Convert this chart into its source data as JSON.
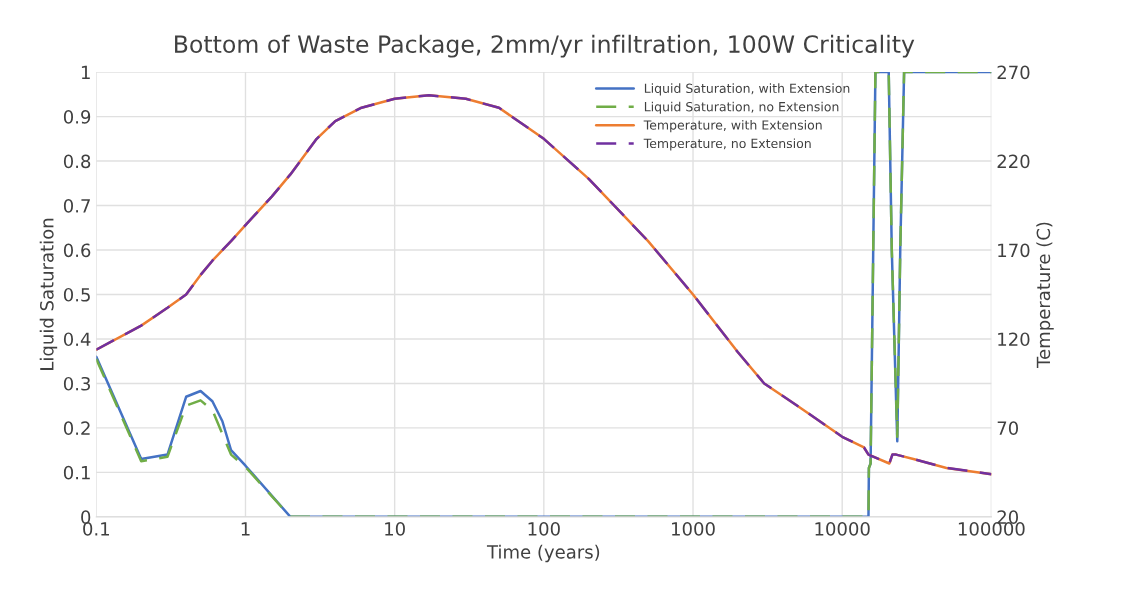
{
  "chart_data": {
    "type": "line",
    "title": "Bottom of Waste Package, 2mm/yr infiltration, 100W Criticality",
    "xlabel": "Time (years)",
    "ylabel": "Liquid Saturation",
    "y2label": "Temperature (C)",
    "log": "x",
    "xlim": [
      0.1,
      100000
    ],
    "xticks": [
      0.1,
      1,
      10,
      100,
      1000,
      10000,
      100000
    ],
    "ylim": [
      0,
      1
    ],
    "yticks": [
      0,
      0.1,
      0.2,
      0.3,
      0.4,
      0.5,
      0.6,
      0.7,
      0.8,
      0.9,
      1
    ],
    "y2lim": [
      20,
      270
    ],
    "y2ticks": [
      20,
      70,
      120,
      170,
      220,
      270
    ],
    "grid": true,
    "legend": "top right",
    "series": [
      {
        "name": "Liquid Saturation, with Extension",
        "color": "#4472c4",
        "line_style": "solid",
        "x": [
          0.1,
          0.2,
          0.3,
          0.4,
          0.5,
          0.6,
          0.7,
          0.8,
          1,
          2,
          15000,
          15100,
          15500,
          16700,
          20500,
          21500,
          23400,
          24500,
          26000,
          100000
        ],
        "values": [
          0.36,
          0.13,
          0.14,
          0.27,
          0.283,
          0.26,
          0.215,
          0.15,
          0.115,
          0,
          0,
          0.11,
          0.12,
          1,
          1,
          0.6,
          0.17,
          0.6,
          1,
          1
        ]
      },
      {
        "name": "Liquid Saturation, no Extension",
        "color": "#70ad47",
        "line_style": "dashed",
        "x": [
          0.1,
          0.2,
          0.3,
          0.4,
          0.5,
          0.6,
          0.8,
          1,
          2,
          15000,
          15100,
          15500,
          16700,
          20500,
          21500,
          23400,
          24500,
          26000,
          100000
        ],
        "values": [
          0.355,
          0.125,
          0.135,
          0.25,
          0.262,
          0.24,
          0.14,
          0.112,
          0,
          0,
          0.11,
          0.12,
          1,
          1,
          0.6,
          0.18,
          0.6,
          1,
          1
        ]
      },
      {
        "name": "Temperature, with Extension",
        "color": "#ed7d31",
        "line_style": "solid",
        "axis": "y2",
        "x": [
          0.1,
          0.2,
          0.3,
          0.4,
          0.5,
          0.6,
          0.8,
          1,
          1.5,
          2,
          3,
          4,
          6,
          10,
          17,
          30,
          50,
          100,
          200,
          500,
          1000,
          2000,
          3000,
          5000,
          10000,
          14000,
          15000,
          20700,
          21700,
          23000,
          30000,
          50000,
          100000
        ],
        "values": [
          114,
          127.5,
          137.5,
          145,
          156,
          164,
          175,
          184,
          200,
          212.5,
          232.5,
          242.5,
          250,
          255,
          257,
          255,
          250,
          232.5,
          210,
          175,
          145,
          112.5,
          95,
          82.5,
          65,
          59,
          55,
          50,
          55,
          55,
          52.5,
          47.5,
          44
        ]
      },
      {
        "name": "Temperature, no Extension",
        "color": "#7030a0",
        "line_style": "dashed",
        "axis": "y2",
        "x": [
          0.1,
          0.2,
          0.3,
          0.4,
          0.5,
          0.6,
          0.8,
          1,
          1.5,
          2,
          3,
          4,
          6,
          10,
          17,
          30,
          50,
          100,
          200,
          500,
          1000,
          2000,
          3000,
          5000,
          10000,
          14000,
          15000,
          20700,
          21700,
          23000,
          30000,
          50000,
          100000
        ],
        "values": [
          114,
          127.5,
          137.5,
          145,
          156,
          164,
          175,
          184,
          200,
          212.5,
          232.5,
          242.5,
          250,
          255,
          257,
          255,
          250,
          232.5,
          210,
          175,
          145,
          112.5,
          95,
          82.5,
          65,
          59,
          55,
          50,
          55,
          55,
          52.5,
          47.5,
          44
        ]
      }
    ]
  }
}
